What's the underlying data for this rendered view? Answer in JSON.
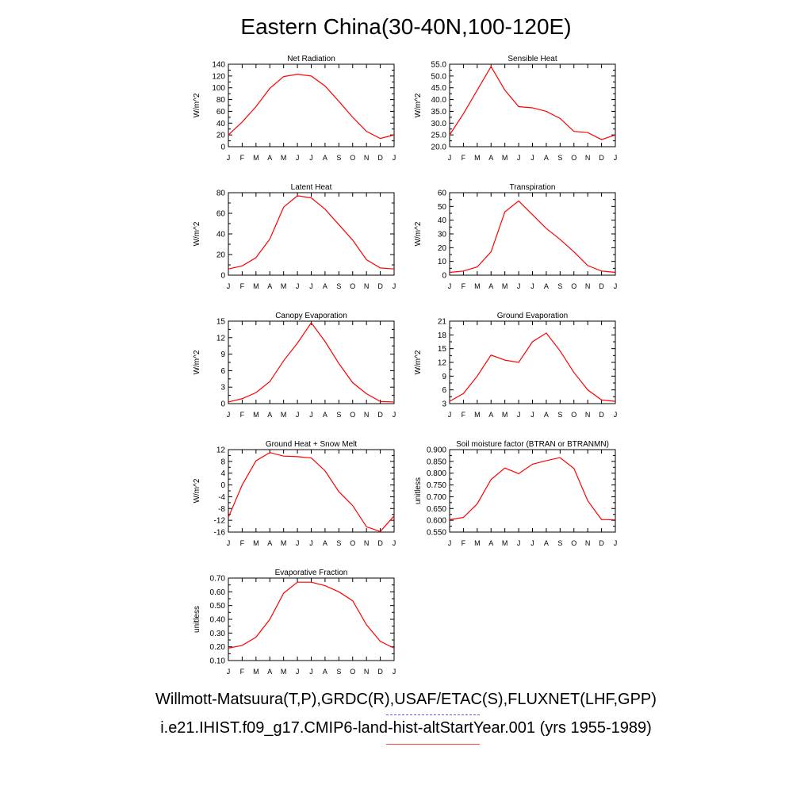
{
  "figure": {
    "title": "Eastern China(30-40N,100-120E)",
    "legend": {
      "obs_label": "Willmott-Matsuura(T,P),GRDC(R),USAF/ETAC(S),FLUXNET(LHF,GPP)",
      "obs_color": "#5a5aff",
      "model_label": "i.e21.IHIST.f09_g17.CMIP6-land-hist-altStartYear.001 (yrs 1955-1989)",
      "model_color": "#ff0000"
    }
  },
  "chart_data": [
    {
      "type": "line",
      "title": "Net Radiation",
      "ylabel": "W/m^2",
      "x": [
        "J",
        "F",
        "M",
        "A",
        "M",
        "J",
        "J",
        "A",
        "S",
        "O",
        "N",
        "D",
        "J"
      ],
      "ylim": [
        0,
        140
      ],
      "yticks": [
        "0",
        "20",
        "40",
        "60",
        "80",
        "100",
        "120",
        "140"
      ],
      "series": [
        {
          "values": [
            20,
            42,
            68,
            99,
            119,
            123,
            120,
            103,
            77,
            50,
            26,
            14,
            20
          ],
          "color": "#ff0000"
        }
      ]
    },
    {
      "type": "line",
      "title": "Sensible Heat",
      "ylabel": "W/m^2",
      "x": [
        "J",
        "F",
        "M",
        "A",
        "M",
        "J",
        "J",
        "A",
        "S",
        "O",
        "N",
        "D",
        "J"
      ],
      "ylim": [
        20,
        55
      ],
      "yticks": [
        "20.0",
        "25.0",
        "30.0",
        "35.0",
        "40.0",
        "45.0",
        "50.0",
        "55.0"
      ],
      "series": [
        {
          "values": [
            25,
            34,
            44,
            54,
            44,
            37,
            36.5,
            35,
            32,
            26.5,
            26,
            23,
            25
          ],
          "color": "#ff0000"
        }
      ]
    },
    {
      "type": "line",
      "title": "Latent Heat",
      "ylabel": "W/m^2",
      "x": [
        "J",
        "F",
        "M",
        "A",
        "M",
        "J",
        "J",
        "A",
        "S",
        "O",
        "N",
        "D",
        "J"
      ],
      "ylim": [
        0,
        80
      ],
      "yticks": [
        "0",
        "20",
        "40",
        "60",
        "80"
      ],
      "series": [
        {
          "values": [
            6,
            9,
            17,
            35,
            66,
            77,
            75,
            64,
            49,
            34,
            15,
            7,
            6
          ],
          "color": "#ff0000"
        }
      ]
    },
    {
      "type": "line",
      "title": "Transpiration",
      "ylabel": "W/m^2",
      "x": [
        "J",
        "F",
        "M",
        "A",
        "M",
        "J",
        "J",
        "A",
        "S",
        "O",
        "N",
        "D",
        "J"
      ],
      "ylim": [
        0,
        60
      ],
      "yticks": [
        "0",
        "10",
        "20",
        "30",
        "40",
        "50",
        "60"
      ],
      "series": [
        {
          "values": [
            2,
            3,
            6,
            17,
            46,
            54,
            44,
            34,
            26,
            17,
            7,
            3,
            2
          ],
          "color": "#ff0000"
        }
      ]
    },
    {
      "type": "line",
      "title": "Canopy Evaporation",
      "ylabel": "W/m^2",
      "x": [
        "J",
        "F",
        "M",
        "A",
        "M",
        "J",
        "J",
        "A",
        "S",
        "O",
        "N",
        "D",
        "J"
      ],
      "ylim": [
        0,
        15
      ],
      "yticks": [
        "0",
        "3",
        "6",
        "9",
        "12",
        "15"
      ],
      "series": [
        {
          "values": [
            0.3,
            0.9,
            2.0,
            4.0,
            7.8,
            11.0,
            14.7,
            11.3,
            7.3,
            3.8,
            1.8,
            0.4,
            0.3
          ],
          "color": "#ff0000"
        }
      ]
    },
    {
      "type": "line",
      "title": "Ground Evaporation",
      "ylabel": "W/m^2",
      "x": [
        "J",
        "F",
        "M",
        "A",
        "M",
        "J",
        "J",
        "A",
        "S",
        "O",
        "N",
        "D",
        "J"
      ],
      "ylim": [
        3,
        21
      ],
      "yticks": [
        "3",
        "6",
        "9",
        "12",
        "15",
        "18",
        "21"
      ],
      "series": [
        {
          "values": [
            3.5,
            5.2,
            9.0,
            13.6,
            12.5,
            12.0,
            16.5,
            18.4,
            14.5,
            9.8,
            6.0,
            3.8,
            3.5
          ],
          "color": "#ff0000"
        }
      ]
    },
    {
      "type": "line",
      "title": "Ground Heat + Snow Melt",
      "ylabel": "W/m^2",
      "x": [
        "J",
        "F",
        "M",
        "A",
        "M",
        "J",
        "J",
        "A",
        "S",
        "O",
        "N",
        "D",
        "J"
      ],
      "ylim": [
        -16,
        12
      ],
      "yticks": [
        "-16",
        "-12",
        "-8",
        "-4",
        "0",
        "4",
        "8",
        "12"
      ],
      "series": [
        {
          "values": [
            -11,
            0,
            8.2,
            11,
            9.8,
            9.6,
            9.2,
            4.8,
            -2.3,
            -7.0,
            -14.2,
            -15.8,
            -10.5
          ],
          "color": "#ff0000"
        }
      ]
    },
    {
      "type": "line",
      "title": "Soil moisture factor (BTRAN or BTRANMN)",
      "ylabel": "unitless",
      "x": [
        "J",
        "F",
        "M",
        "A",
        "M",
        "J",
        "J",
        "A",
        "S",
        "O",
        "N",
        "D",
        "J"
      ],
      "ylim": [
        0.55,
        0.9
      ],
      "yticks": [
        "0.550",
        "0.600",
        "0.650",
        "0.700",
        "0.750",
        "0.800",
        "0.850",
        "0.900"
      ],
      "series": [
        {
          "values": [
            0.603,
            0.612,
            0.67,
            0.773,
            0.822,
            0.798,
            0.838,
            0.853,
            0.866,
            0.82,
            0.683,
            0.603,
            0.602
          ],
          "color": "#ff0000"
        }
      ]
    },
    {
      "type": "line",
      "title": "Evaporative Fraction",
      "ylabel": "unitless",
      "x": [
        "J",
        "F",
        "M",
        "A",
        "M",
        "J",
        "J",
        "A",
        "S",
        "O",
        "N",
        "D",
        "J"
      ],
      "ylim": [
        0.1,
        0.7
      ],
      "yticks": [
        "0.10",
        "0.20",
        "0.30",
        "0.40",
        "0.50",
        "0.60",
        "0.70"
      ],
      "series": [
        {
          "values": [
            0.19,
            0.21,
            0.27,
            0.4,
            0.59,
            0.67,
            0.67,
            0.645,
            0.6,
            0.535,
            0.36,
            0.24,
            0.19
          ],
          "color": "#ff0000"
        }
      ]
    }
  ]
}
